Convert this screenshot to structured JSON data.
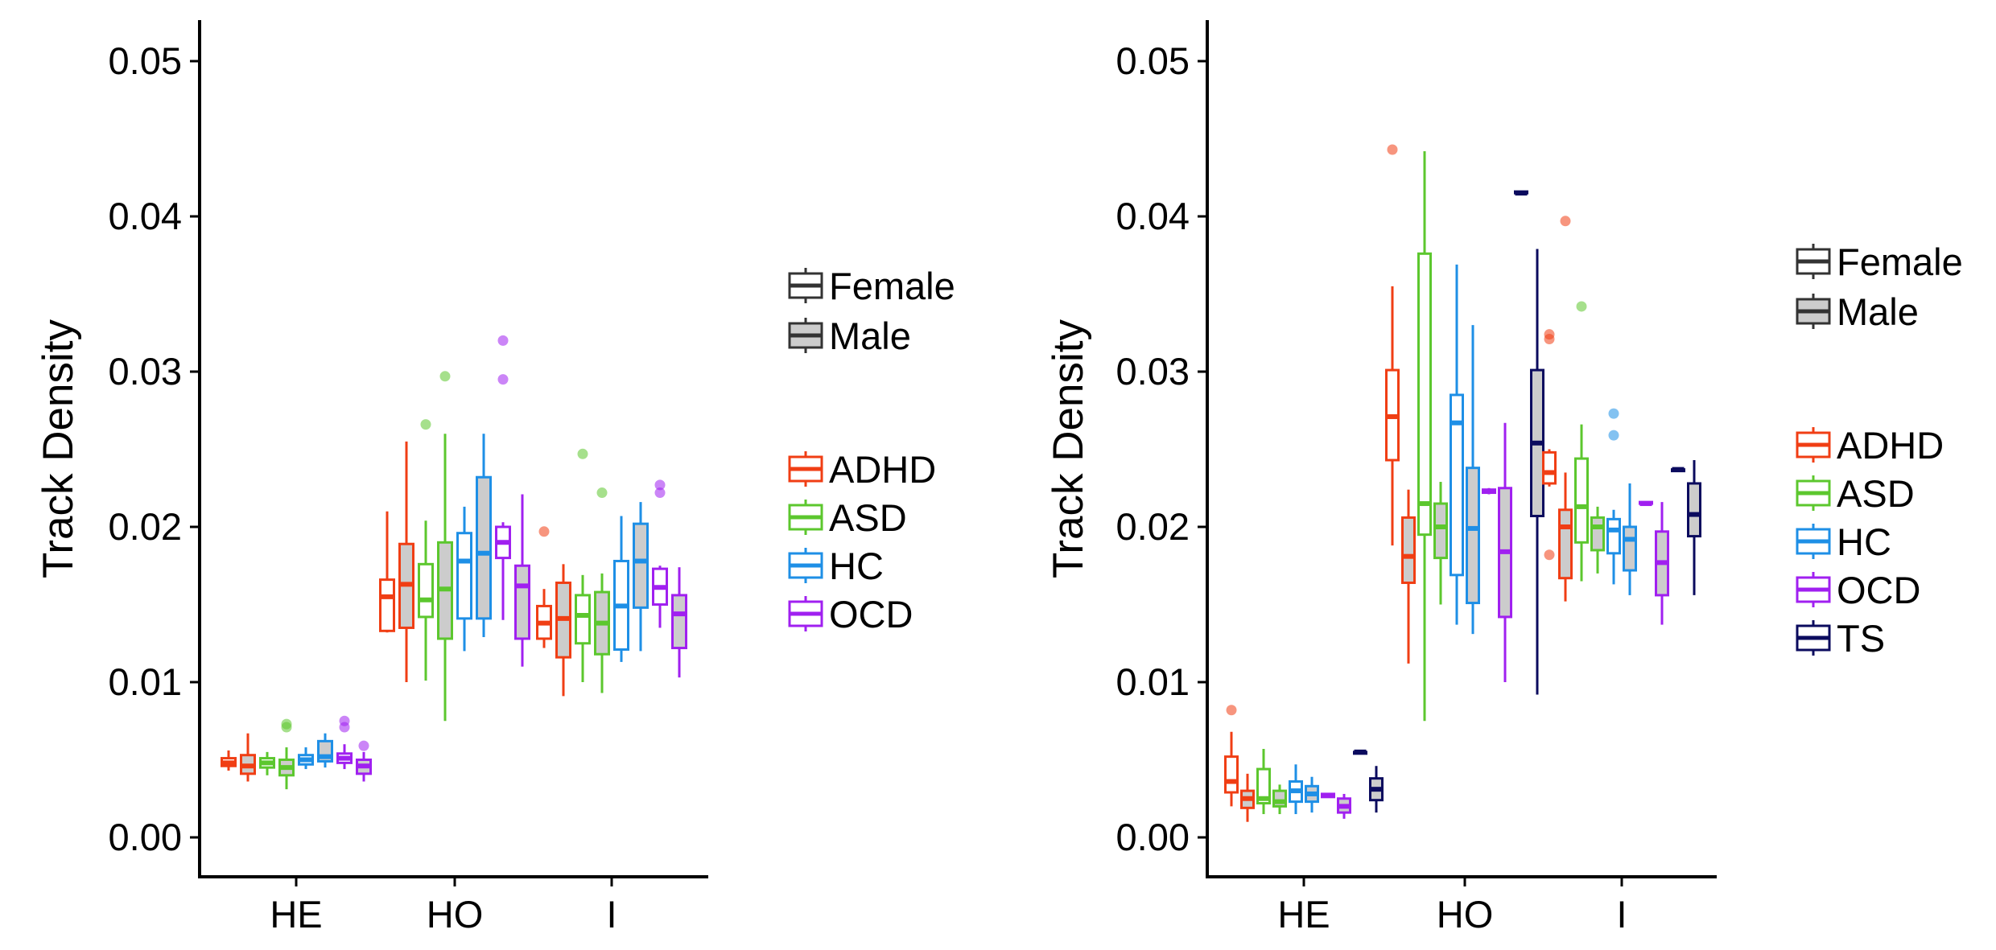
{
  "colors": {
    "ADHD": "#F03E14",
    "ASD": "#5CC72E",
    "HC": "#1E8FE6",
    "OCD": "#A020F0",
    "TS": "#0B0B5E",
    "male_fill": "#CCCCCC",
    "female_fill": "#FFFFFF"
  },
  "chart_data": [
    {
      "type": "box",
      "xlabel": "",
      "ylabel": "Track Density",
      "categories": [
        "HE",
        "HO",
        "I"
      ],
      "ylim": [
        -0.0025,
        0.0525
      ],
      "yticks": [
        "0.00",
        "0.01",
        "0.02",
        "0.03",
        "0.04",
        "0.05"
      ],
      "legend_sex_title": "",
      "legend_sex": [
        "Female",
        "Male"
      ],
      "legend_group": [
        "ADHD",
        "ASD",
        "HC",
        "OCD"
      ],
      "boxes": [
        {
          "category": "HE",
          "group": "ADHD",
          "sex": "Female",
          "min": 0.0043,
          "q1": 0.0046,
          "median": 0.0048,
          "q3": 0.0051,
          "max": 0.0056,
          "outliers": []
        },
        {
          "category": "HE",
          "group": "ADHD",
          "sex": "Male",
          "min": 0.0036,
          "q1": 0.0041,
          "median": 0.0046,
          "q3": 0.0053,
          "max": 0.0067,
          "outliers": []
        },
        {
          "category": "HE",
          "group": "ASD",
          "sex": "Female",
          "min": 0.004,
          "q1": 0.0045,
          "median": 0.0048,
          "q3": 0.0051,
          "max": 0.0055,
          "outliers": []
        },
        {
          "category": "HE",
          "group": "ASD",
          "sex": "Male",
          "min": 0.0031,
          "q1": 0.004,
          "median": 0.0045,
          "q3": 0.005,
          "max": 0.0058,
          "outliers": [
            0.0071,
            0.0073
          ]
        },
        {
          "category": "HE",
          "group": "HC",
          "sex": "Female",
          "min": 0.0044,
          "q1": 0.0047,
          "median": 0.005,
          "q3": 0.0053,
          "max": 0.0058,
          "outliers": []
        },
        {
          "category": "HE",
          "group": "HC",
          "sex": "Male",
          "min": 0.0045,
          "q1": 0.0049,
          "median": 0.0052,
          "q3": 0.0062,
          "max": 0.0067,
          "outliers": []
        },
        {
          "category": "HE",
          "group": "OCD",
          "sex": "Female",
          "min": 0.0044,
          "q1": 0.0048,
          "median": 0.0051,
          "q3": 0.0054,
          "max": 0.006,
          "outliers": [
            0.0071,
            0.0075
          ]
        },
        {
          "category": "HE",
          "group": "OCD",
          "sex": "Male",
          "min": 0.0036,
          "q1": 0.0041,
          "median": 0.0046,
          "q3": 0.005,
          "max": 0.0055,
          "outliers": [
            0.0059
          ]
        },
        {
          "category": "HO",
          "group": "ADHD",
          "sex": "Female",
          "min": 0.0132,
          "q1": 0.0133,
          "median": 0.0155,
          "q3": 0.0166,
          "max": 0.021,
          "outliers": []
        },
        {
          "category": "HO",
          "group": "ADHD",
          "sex": "Male",
          "min": 0.01,
          "q1": 0.0135,
          "median": 0.0163,
          "q3": 0.0189,
          "max": 0.0255,
          "outliers": []
        },
        {
          "category": "HO",
          "group": "ASD",
          "sex": "Female",
          "min": 0.0101,
          "q1": 0.0142,
          "median": 0.0153,
          "q3": 0.0176,
          "max": 0.0204,
          "outliers": [
            0.0266
          ]
        },
        {
          "category": "HO",
          "group": "ASD",
          "sex": "Male",
          "min": 0.0075,
          "q1": 0.0128,
          "median": 0.016,
          "q3": 0.019,
          "max": 0.026,
          "outliers": [
            0.0297
          ]
        },
        {
          "category": "HO",
          "group": "HC",
          "sex": "Female",
          "min": 0.012,
          "q1": 0.0141,
          "median": 0.0178,
          "q3": 0.0196,
          "max": 0.0213,
          "outliers": []
        },
        {
          "category": "HO",
          "group": "HC",
          "sex": "Male",
          "min": 0.0129,
          "q1": 0.0141,
          "median": 0.0183,
          "q3": 0.0232,
          "max": 0.026,
          "outliers": []
        },
        {
          "category": "HO",
          "group": "OCD",
          "sex": "Female",
          "min": 0.014,
          "q1": 0.018,
          "median": 0.019,
          "q3": 0.02,
          "max": 0.0203,
          "outliers": [
            0.0295,
            0.032
          ]
        },
        {
          "category": "HO",
          "group": "OCD",
          "sex": "Male",
          "min": 0.011,
          "q1": 0.0128,
          "median": 0.0162,
          "q3": 0.0175,
          "max": 0.0221,
          "outliers": []
        },
        {
          "category": "I",
          "group": "ADHD",
          "sex": "Female",
          "min": 0.0122,
          "q1": 0.0128,
          "median": 0.0138,
          "q3": 0.0149,
          "max": 0.016,
          "outliers": [
            0.0197
          ]
        },
        {
          "category": "I",
          "group": "ADHD",
          "sex": "Male",
          "min": 0.0091,
          "q1": 0.0116,
          "median": 0.0141,
          "q3": 0.0164,
          "max": 0.0176,
          "outliers": []
        },
        {
          "category": "I",
          "group": "ASD",
          "sex": "Female",
          "min": 0.01,
          "q1": 0.0125,
          "median": 0.0143,
          "q3": 0.0156,
          "max": 0.0169,
          "outliers": [
            0.0247
          ]
        },
        {
          "category": "I",
          "group": "ASD",
          "sex": "Male",
          "min": 0.0093,
          "q1": 0.0118,
          "median": 0.0138,
          "q3": 0.0158,
          "max": 0.017,
          "outliers": [
            0.0222
          ]
        },
        {
          "category": "I",
          "group": "HC",
          "sex": "Female",
          "min": 0.0113,
          "q1": 0.0121,
          "median": 0.0149,
          "q3": 0.0178,
          "max": 0.0207,
          "outliers": []
        },
        {
          "category": "I",
          "group": "HC",
          "sex": "Male",
          "min": 0.012,
          "q1": 0.0148,
          "median": 0.0178,
          "q3": 0.0202,
          "max": 0.0216,
          "outliers": []
        },
        {
          "category": "I",
          "group": "OCD",
          "sex": "Female",
          "min": 0.0135,
          "q1": 0.015,
          "median": 0.0161,
          "q3": 0.0173,
          "max": 0.0175,
          "outliers": [
            0.0222,
            0.0227
          ]
        },
        {
          "category": "I",
          "group": "OCD",
          "sex": "Male",
          "min": 0.0103,
          "q1": 0.0122,
          "median": 0.0144,
          "q3": 0.0156,
          "max": 0.0174,
          "outliers": []
        }
      ]
    },
    {
      "type": "box",
      "xlabel": "",
      "ylabel": "Track Density",
      "categories": [
        "HE",
        "HO",
        "I"
      ],
      "ylim": [
        -0.0025,
        0.0525
      ],
      "yticks": [
        "0.00",
        "0.01",
        "0.02",
        "0.03",
        "0.04",
        "0.05"
      ],
      "legend_sex_title": "",
      "legend_sex": [
        "Female",
        "Male"
      ],
      "legend_group": [
        "ADHD",
        "ASD",
        "HC",
        "OCD",
        "TS"
      ],
      "boxes": [
        {
          "category": "HE",
          "group": "ADHD",
          "sex": "Female",
          "min": 0.002,
          "q1": 0.0029,
          "median": 0.0036,
          "q3": 0.0052,
          "max": 0.0068,
          "outliers": [
            0.0082
          ]
        },
        {
          "category": "HE",
          "group": "ADHD",
          "sex": "Male",
          "min": 0.001,
          "q1": 0.0019,
          "median": 0.0025,
          "q3": 0.003,
          "max": 0.0041,
          "outliers": []
        },
        {
          "category": "HE",
          "group": "ASD",
          "sex": "Female",
          "min": 0.0015,
          "q1": 0.0022,
          "median": 0.0025,
          "q3": 0.0044,
          "max": 0.0057,
          "outliers": []
        },
        {
          "category": "HE",
          "group": "ASD",
          "sex": "Male",
          "min": 0.0015,
          "q1": 0.002,
          "median": 0.0023,
          "q3": 0.003,
          "max": 0.0034,
          "outliers": []
        },
        {
          "category": "HE",
          "group": "HC",
          "sex": "Female",
          "min": 0.0015,
          "q1": 0.0023,
          "median": 0.003,
          "q3": 0.0036,
          "max": 0.0047,
          "outliers": []
        },
        {
          "category": "HE",
          "group": "HC",
          "sex": "Male",
          "min": 0.0016,
          "q1": 0.0023,
          "median": 0.0028,
          "q3": 0.0033,
          "max": 0.0039,
          "outliers": []
        },
        {
          "category": "HE",
          "group": "OCD",
          "sex": "Female",
          "min": 0.0026,
          "q1": 0.0026,
          "median": 0.0027,
          "q3": 0.0028,
          "max": 0.0028,
          "outliers": []
        },
        {
          "category": "HE",
          "group": "OCD",
          "sex": "Male",
          "min": 0.0012,
          "q1": 0.0016,
          "median": 0.002,
          "q3": 0.0025,
          "max": 0.0028,
          "outliers": []
        },
        {
          "category": "HE",
          "group": "TS",
          "sex": "Female",
          "min": 0.0054,
          "q1": 0.0054,
          "median": 0.0055,
          "q3": 0.0055,
          "max": 0.0055,
          "outliers": []
        },
        {
          "category": "HE",
          "group": "TS",
          "sex": "Male",
          "min": 0.0016,
          "q1": 0.0024,
          "median": 0.0031,
          "q3": 0.0038,
          "max": 0.0046,
          "outliers": []
        },
        {
          "category": "HO",
          "group": "ADHD",
          "sex": "Female",
          "min": 0.0188,
          "q1": 0.0243,
          "median": 0.0271,
          "q3": 0.0301,
          "max": 0.0355,
          "outliers": [
            0.0443
          ]
        },
        {
          "category": "HO",
          "group": "ADHD",
          "sex": "Male",
          "min": 0.0112,
          "q1": 0.0164,
          "median": 0.0181,
          "q3": 0.0206,
          "max": 0.0224,
          "outliers": []
        },
        {
          "category": "HO",
          "group": "ASD",
          "sex": "Female",
          "min": 0.0075,
          "q1": 0.0195,
          "median": 0.0215,
          "q3": 0.0376,
          "max": 0.0442,
          "outliers": []
        },
        {
          "category": "HO",
          "group": "ASD",
          "sex": "Male",
          "min": 0.015,
          "q1": 0.018,
          "median": 0.02,
          "q3": 0.0215,
          "max": 0.0229,
          "outliers": []
        },
        {
          "category": "HO",
          "group": "HC",
          "sex": "Female",
          "min": 0.0137,
          "q1": 0.0169,
          "median": 0.0267,
          "q3": 0.0285,
          "max": 0.0369,
          "outliers": []
        },
        {
          "category": "HO",
          "group": "HC",
          "sex": "Male",
          "min": 0.0131,
          "q1": 0.0151,
          "median": 0.0199,
          "q3": 0.0238,
          "max": 0.033,
          "outliers": []
        },
        {
          "category": "HO",
          "group": "OCD",
          "sex": "Female",
          "min": 0.0221,
          "q1": 0.0222,
          "median": 0.0223,
          "q3": 0.0224,
          "max": 0.0225,
          "outliers": []
        },
        {
          "category": "HO",
          "group": "OCD",
          "sex": "Male",
          "min": 0.01,
          "q1": 0.0142,
          "median": 0.0184,
          "q3": 0.0225,
          "max": 0.0267,
          "outliers": []
        },
        {
          "category": "HO",
          "group": "TS",
          "sex": "Female",
          "min": 0.0415,
          "q1": 0.0415,
          "median": 0.0415,
          "q3": 0.0416,
          "max": 0.0416,
          "outliers": []
        },
        {
          "category": "HO",
          "group": "TS",
          "sex": "Male",
          "min": 0.0092,
          "q1": 0.0207,
          "median": 0.0254,
          "q3": 0.0301,
          "max": 0.0379,
          "outliers": []
        },
        {
          "category": "I",
          "group": "ADHD",
          "sex": "Female",
          "min": 0.0226,
          "q1": 0.0228,
          "median": 0.0235,
          "q3": 0.0248,
          "max": 0.025,
          "outliers": [
            0.0182,
            0.0321,
            0.0324
          ]
        },
        {
          "category": "I",
          "group": "ADHD",
          "sex": "Male",
          "min": 0.0152,
          "q1": 0.0167,
          "median": 0.02,
          "q3": 0.0211,
          "max": 0.0235,
          "outliers": [
            0.0397
          ]
        },
        {
          "category": "I",
          "group": "ASD",
          "sex": "Female",
          "min": 0.0165,
          "q1": 0.019,
          "median": 0.0213,
          "q3": 0.0244,
          "max": 0.0266,
          "outliers": [
            0.0342
          ]
        },
        {
          "category": "I",
          "group": "ASD",
          "sex": "Male",
          "min": 0.017,
          "q1": 0.0185,
          "median": 0.02,
          "q3": 0.0206,
          "max": 0.0213,
          "outliers": []
        },
        {
          "category": "I",
          "group": "HC",
          "sex": "Female",
          "min": 0.0163,
          "q1": 0.0183,
          "median": 0.0198,
          "q3": 0.0205,
          "max": 0.0211,
          "outliers": [
            0.0259,
            0.0273
          ]
        },
        {
          "category": "I",
          "group": "HC",
          "sex": "Male",
          "min": 0.0156,
          "q1": 0.0172,
          "median": 0.0192,
          "q3": 0.02,
          "max": 0.0228,
          "outliers": []
        },
        {
          "category": "I",
          "group": "OCD",
          "sex": "Female",
          "min": 0.0215,
          "q1": 0.0215,
          "median": 0.0215,
          "q3": 0.0216,
          "max": 0.0216,
          "outliers": []
        },
        {
          "category": "I",
          "group": "OCD",
          "sex": "Male",
          "min": 0.0137,
          "q1": 0.0156,
          "median": 0.0177,
          "q3": 0.0197,
          "max": 0.0216,
          "outliers": []
        },
        {
          "category": "I",
          "group": "TS",
          "sex": "Female",
          "min": 0.0236,
          "q1": 0.0236,
          "median": 0.0237,
          "q3": 0.0237,
          "max": 0.0237,
          "outliers": []
        },
        {
          "category": "I",
          "group": "TS",
          "sex": "Male",
          "min": 0.0156,
          "q1": 0.0194,
          "median": 0.0208,
          "q3": 0.0228,
          "max": 0.0243,
          "outliers": []
        }
      ]
    }
  ]
}
